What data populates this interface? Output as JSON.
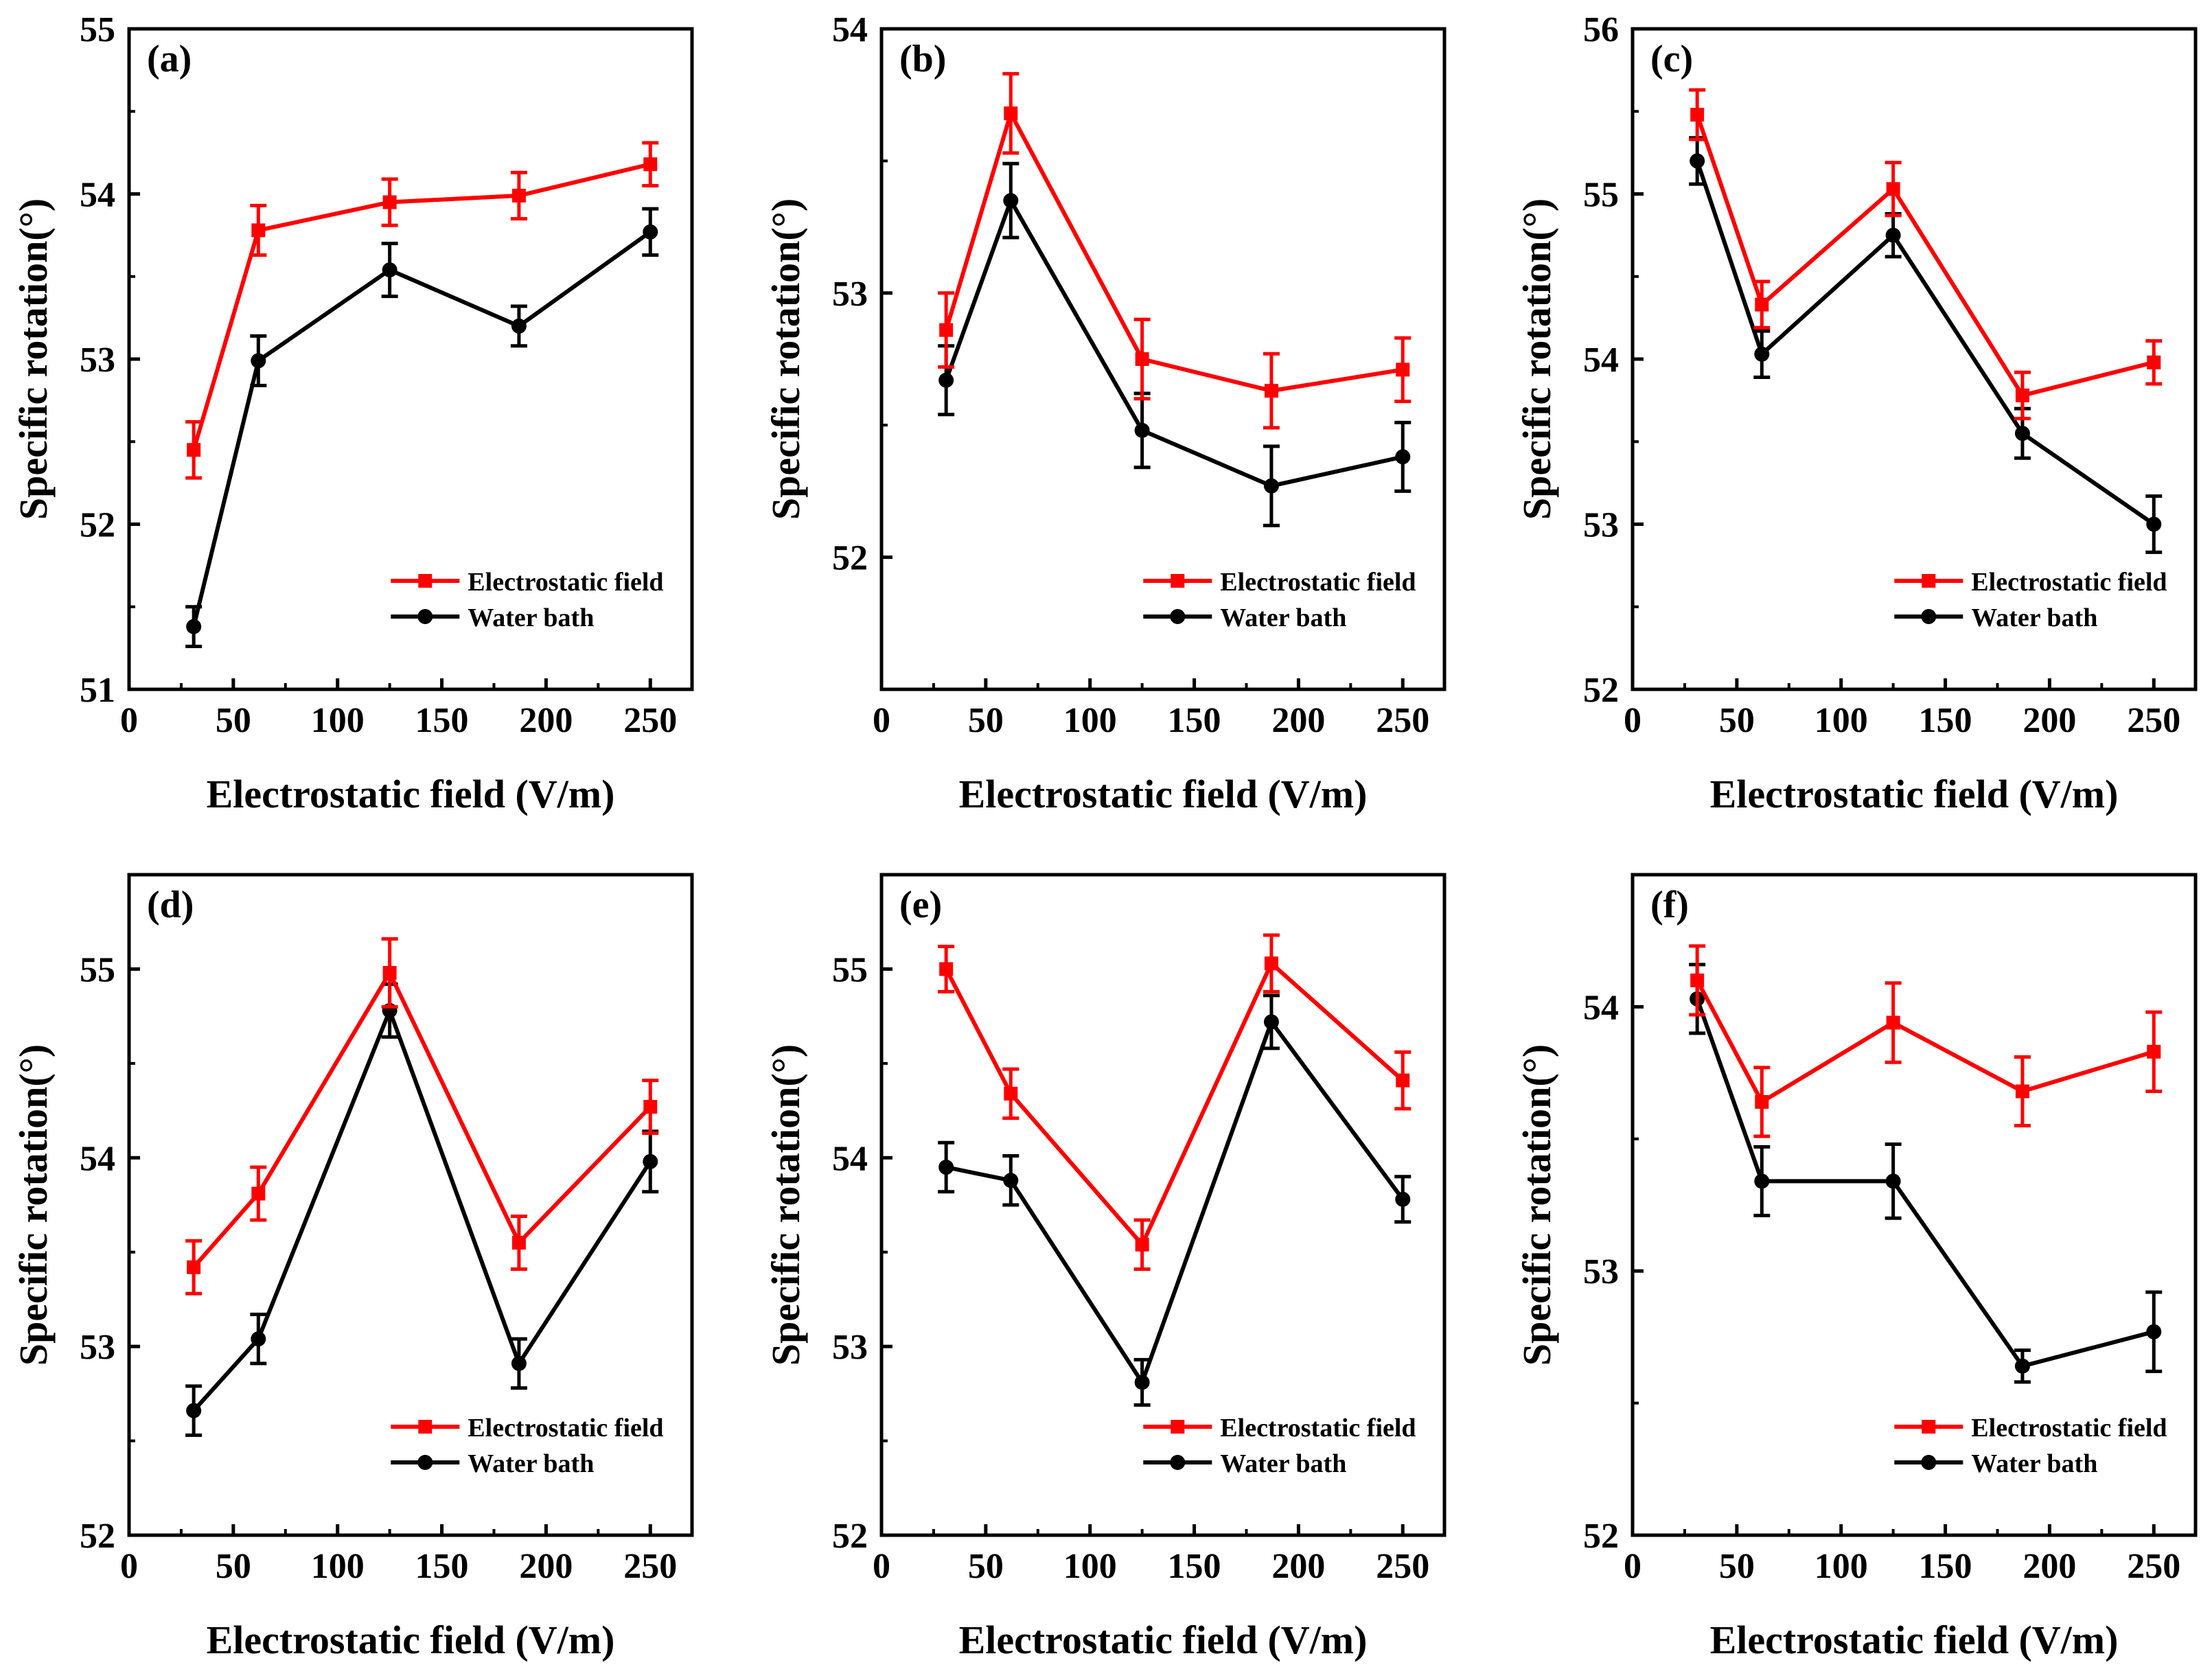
{
  "colors": {
    "electrostatic": "#ff0000",
    "water": "#000000"
  },
  "chart_data": [
    {
      "type": "line",
      "label": "(a)",
      "xlabel": "Electrostatic field (V/m)",
      "ylabel": "Specific rotation(°)",
      "xlim": [
        0,
        270
      ],
      "ylim": [
        51,
        55
      ],
      "xticks": [
        0,
        50,
        100,
        150,
        200,
        250
      ],
      "yticks": [
        51,
        52,
        53,
        54,
        55
      ],
      "x": [
        31,
        62,
        125,
        187,
        250
      ],
      "series": [
        {
          "name": "Electrostatic field",
          "values": [
            52.45,
            53.78,
            53.95,
            53.99,
            54.18
          ],
          "errors": [
            0.17,
            0.15,
            0.14,
            0.14,
            0.13
          ]
        },
        {
          "name": "Water bath",
          "values": [
            51.38,
            52.99,
            53.54,
            53.2,
            53.77
          ],
          "errors": [
            0.12,
            0.15,
            0.16,
            0.12,
            0.14
          ]
        }
      ]
    },
    {
      "type": "line",
      "label": "(b)",
      "xlabel": "Electrostatic field (V/m)",
      "ylabel": "Specific rotation(°)",
      "xlim": [
        0,
        270
      ],
      "ylim": [
        51.5,
        54
      ],
      "xticks": [
        0,
        50,
        100,
        150,
        200,
        250
      ],
      "yticks": [
        52,
        53,
        54
      ],
      "x": [
        31,
        62,
        125,
        187,
        250
      ],
      "series": [
        {
          "name": "Electrostatic field",
          "values": [
            52.86,
            53.68,
            52.75,
            52.63,
            52.71
          ],
          "errors": [
            0.14,
            0.15,
            0.15,
            0.14,
            0.12
          ]
        },
        {
          "name": "Water bath",
          "values": [
            52.67,
            53.35,
            52.48,
            52.27,
            52.38
          ],
          "errors": [
            0.13,
            0.14,
            0.14,
            0.15,
            0.13
          ]
        }
      ]
    },
    {
      "type": "line",
      "label": "(c)",
      "xlabel": "Electrostatic field (V/m)",
      "ylabel": "Specific rotation(°)",
      "xlim": [
        0,
        270
      ],
      "ylim": [
        52,
        56
      ],
      "xticks": [
        0,
        50,
        100,
        150,
        200,
        250
      ],
      "yticks": [
        52,
        53,
        54,
        55,
        56
      ],
      "x": [
        31,
        62,
        125,
        187,
        250
      ],
      "series": [
        {
          "name": "Electrostatic field",
          "values": [
            55.48,
            54.33,
            55.03,
            53.78,
            53.98
          ],
          "errors": [
            0.15,
            0.14,
            0.16,
            0.14,
            0.13
          ]
        },
        {
          "name": "Water bath",
          "values": [
            55.2,
            54.03,
            54.75,
            53.55,
            53.0
          ],
          "errors": [
            0.14,
            0.14,
            0.13,
            0.15,
            0.17
          ]
        }
      ]
    },
    {
      "type": "line",
      "label": "(d)",
      "xlabel": "Electrostatic field (V/m)",
      "ylabel": "Specific rotation(°)",
      "xlim": [
        0,
        270
      ],
      "ylim": [
        52,
        55.5
      ],
      "xticks": [
        0,
        50,
        100,
        150,
        200,
        250
      ],
      "yticks": [
        52,
        53,
        54,
        55
      ],
      "x": [
        31,
        62,
        125,
        187,
        250
      ],
      "series": [
        {
          "name": "Electrostatic field",
          "values": [
            53.42,
            53.81,
            54.98,
            53.55,
            54.27
          ],
          "errors": [
            0.14,
            0.14,
            0.18,
            0.14,
            0.14
          ]
        },
        {
          "name": "Water bath",
          "values": [
            52.66,
            53.04,
            54.78,
            52.91,
            53.98
          ],
          "errors": [
            0.13,
            0.13,
            0.14,
            0.13,
            0.16
          ]
        }
      ]
    },
    {
      "type": "line",
      "label": "(e)",
      "xlabel": "Electrostatic field (V/m)",
      "ylabel": "Specific rotation(°)",
      "xlim": [
        0,
        270
      ],
      "ylim": [
        52,
        55.5
      ],
      "xticks": [
        0,
        50,
        100,
        150,
        200,
        250
      ],
      "yticks": [
        52,
        53,
        54,
        55
      ],
      "x": [
        31,
        62,
        125,
        187,
        250
      ],
      "series": [
        {
          "name": "Electrostatic field",
          "values": [
            55.0,
            54.34,
            53.54,
            55.03,
            54.41
          ],
          "errors": [
            0.12,
            0.13,
            0.13,
            0.15,
            0.15
          ]
        },
        {
          "name": "Water bath",
          "values": [
            53.95,
            53.88,
            52.81,
            54.72,
            53.78
          ],
          "errors": [
            0.13,
            0.13,
            0.12,
            0.14,
            0.12
          ]
        }
      ]
    },
    {
      "type": "line",
      "label": "(f)",
      "xlabel": "Electrostatic field (V/m)",
      "ylabel": "Specific rotation(°)",
      "xlim": [
        0,
        270
      ],
      "ylim": [
        52,
        54.5
      ],
      "xticks": [
        0,
        50,
        100,
        150,
        200,
        250
      ],
      "yticks": [
        52,
        53,
        54
      ],
      "x": [
        31,
        62,
        125,
        187,
        250
      ],
      "series": [
        {
          "name": "Electrostatic field",
          "values": [
            54.1,
            53.64,
            53.94,
            53.68,
            53.83
          ],
          "errors": [
            0.13,
            0.13,
            0.15,
            0.13,
            0.15
          ]
        },
        {
          "name": "Water bath",
          "values": [
            54.03,
            53.34,
            53.34,
            52.64,
            52.77
          ],
          "errors": [
            0.13,
            0.13,
            0.14,
            0.06,
            0.15
          ]
        }
      ]
    }
  ]
}
